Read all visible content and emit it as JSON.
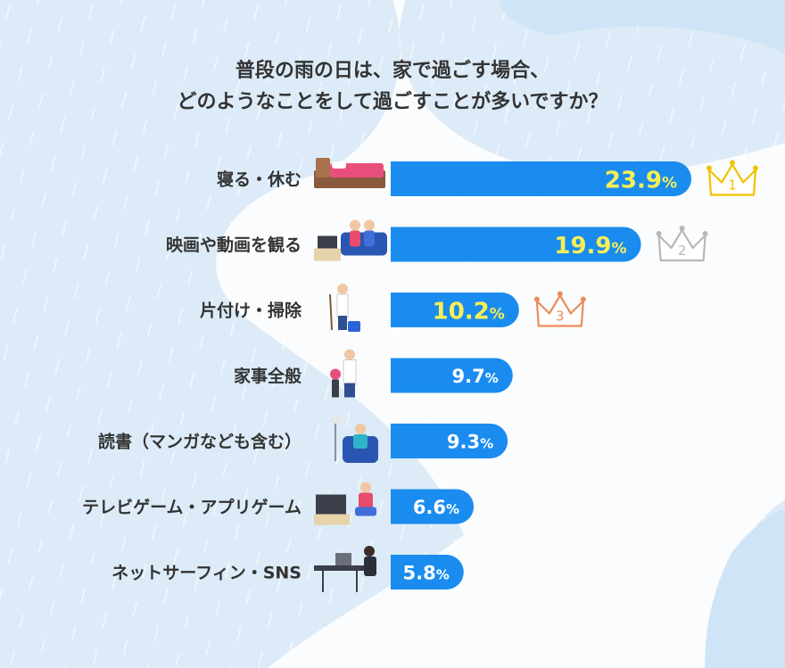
{
  "title": {
    "line1": "普段の雨の日は、家で過ごす場合、",
    "line2": "どのようなことをして過ごすことが多いですか？"
  },
  "colors": {
    "bar": "#1a8cf0",
    "top_value": "#f7f054",
    "value": "#ffffff",
    "label": "#333333",
    "gold": "#f2c200",
    "silver": "#b8b8b8",
    "bronze": "#ec8c5c"
  },
  "chart_data": {
    "type": "bar",
    "orientation": "horizontal",
    "unit": "%",
    "categories": [
      "寝る・休む",
      "映画や動画を観る",
      "片付け・掃除",
      "家事全般",
      "読書（マンガなども含む）",
      "テレビゲーム・アプリゲーム",
      "ネットサーフィン・SNS"
    ],
    "values": [
      23.9,
      19.9,
      10.2,
      9.7,
      9.3,
      6.6,
      5.8
    ],
    "value_labels": [
      "23.9",
      "19.9",
      "10.2",
      "9.7",
      "9.3",
      "6.6",
      "5.8"
    ],
    "ranks": [
      {
        "index": 0,
        "label": "1",
        "medal": "gold"
      },
      {
        "index": 1,
        "label": "2",
        "medal": "silver"
      },
      {
        "index": 2,
        "label": "3",
        "medal": "bronze"
      }
    ],
    "icons": [
      "bed-icon",
      "couple-watching-tv-icon",
      "mopping-person-icon",
      "housework-person-icon",
      "reading-person-icon",
      "gamer-icon",
      "computer-desk-icon"
    ]
  }
}
